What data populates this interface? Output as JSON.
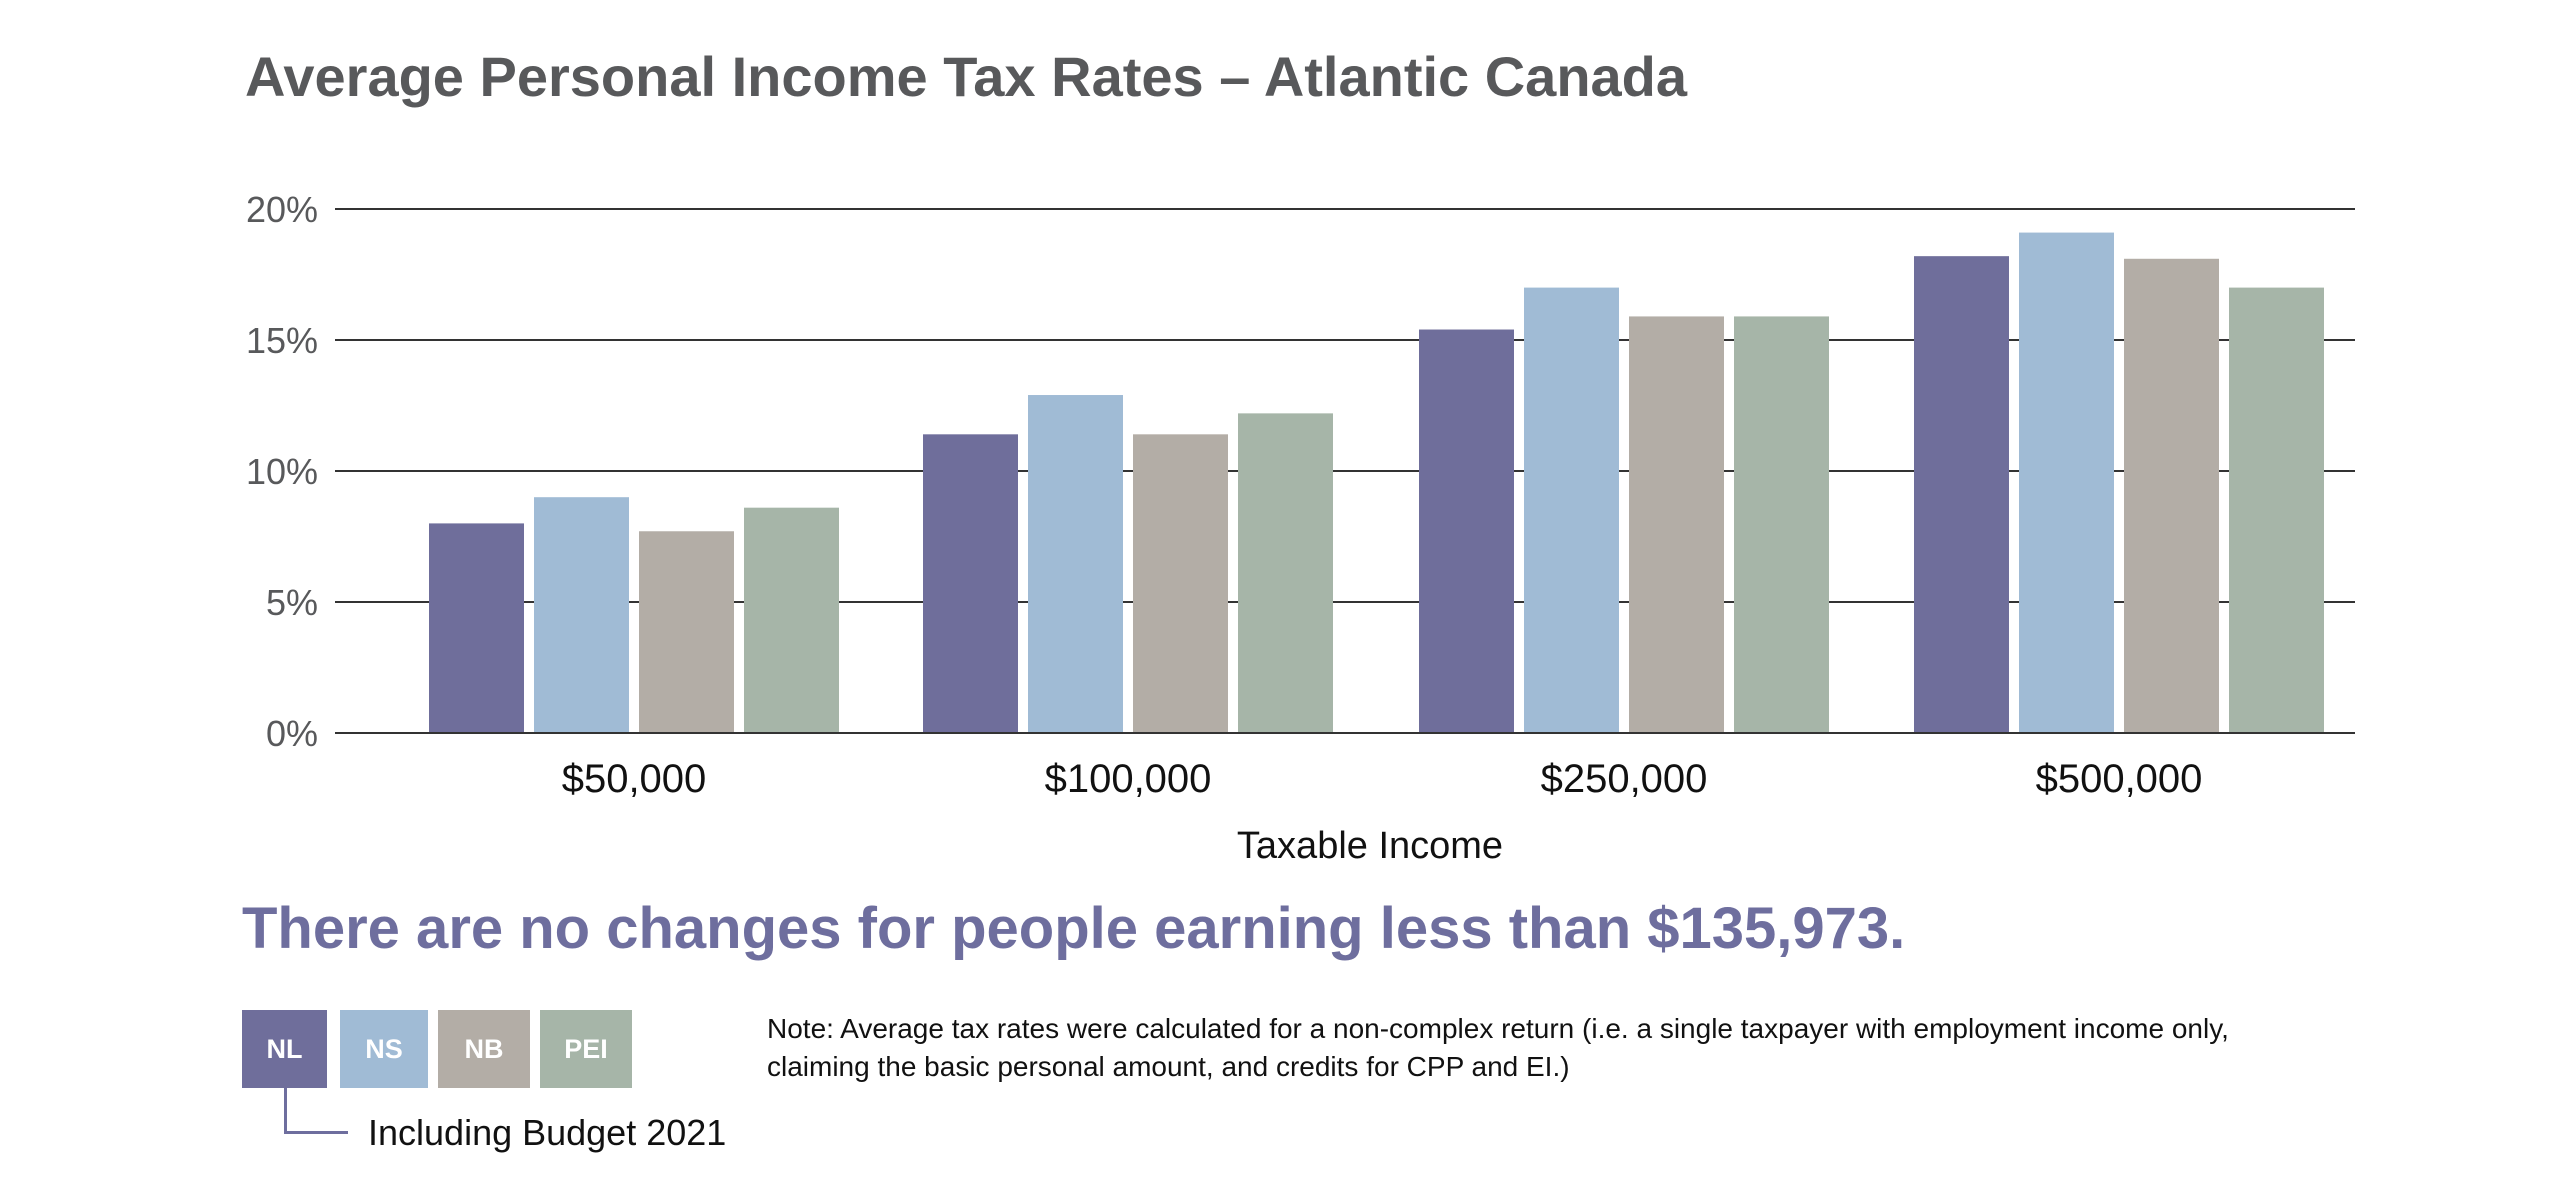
{
  "chart_data": {
    "type": "bar",
    "title": "Average Personal Income Tax Rates – Atlantic Canada",
    "xlabel": "Taxable Income",
    "ylabel": "",
    "categories": [
      "$50,000",
      "$100,000",
      "$250,000",
      "$500,000"
    ],
    "series": [
      {
        "name": "NL",
        "color": "#6f6e9b",
        "values": [
          8.0,
          11.4,
          15.4,
          18.2
        ]
      },
      {
        "name": "NS",
        "color": "#a0bbd5",
        "values": [
          9.0,
          12.9,
          17.0,
          19.1
        ]
      },
      {
        "name": "NB",
        "color": "#b3ada6",
        "values": [
          7.7,
          11.4,
          15.9,
          18.1
        ]
      },
      {
        "name": "PEI",
        "color": "#a6b5a8",
        "values": [
          8.6,
          12.2,
          15.9,
          17.0
        ]
      }
    ],
    "ylim": [
      0,
      20
    ],
    "yticks": [
      "0%",
      "5%",
      "10%",
      "15%",
      "20%"
    ],
    "grid": true,
    "legend_position": "bottom-left"
  },
  "headline": "There are no changes for people earning less than $135,973.",
  "legend_note": "Including Budget 2021",
  "note": "Note: Average tax rates were calculated for a non-complex return (i.e. a single taxpayer with employment income only, claiming the basic personal amount, and credits for CPP and EI.)"
}
